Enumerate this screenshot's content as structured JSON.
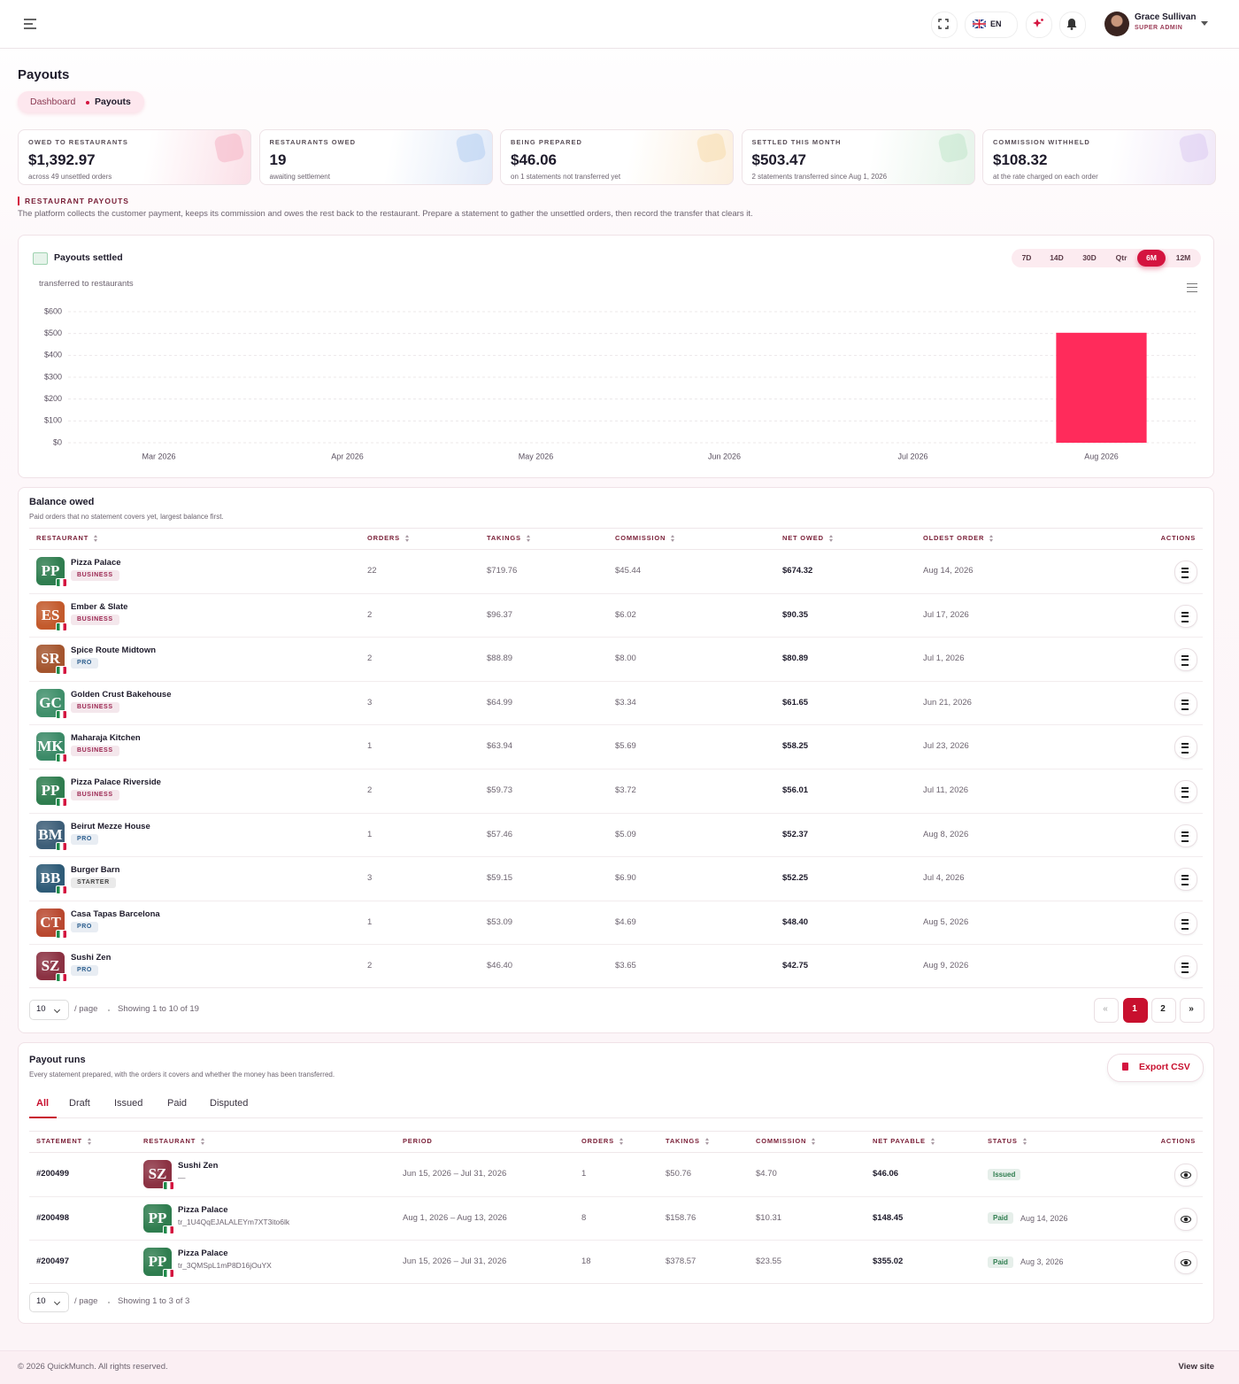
{
  "header": {
    "language": "EN",
    "user_name": "Grace Sullivan",
    "user_role": "SUPER ADMIN"
  },
  "page": {
    "title": "Payouts",
    "breadcrumb": [
      "Dashboard",
      "Payouts"
    ]
  },
  "stats": [
    {
      "label": "OWED TO RESTAURANTS",
      "value": "$1,392.97",
      "note": "across 49 unsettled orders",
      "color": "#f4a9bd"
    },
    {
      "label": "RESTAURANTS OWED",
      "value": "19",
      "note": "awaiting settlement",
      "color": "#a9c8f0"
    },
    {
      "label": "BEING PREPARED",
      "value": "$46.06",
      "note": "on 1 statements not transferred yet",
      "color": "#f6d6a0"
    },
    {
      "label": "SETTLED THIS MONTH",
      "value": "$503.47",
      "note": "2 statements transferred since Aug 1, 2026",
      "color": "#b7e3c4"
    },
    {
      "label": "COMMISSION WITHHELD",
      "value": "$108.32",
      "note": "at the rate charged on each order",
      "color": "#d6c3ef"
    }
  ],
  "section": {
    "label": "RESTAURANT PAYOUTS",
    "description": "The platform collects the customer payment, keeps its commission and owes the rest back to the restaurant. Prepare a statement to gather the unsettled orders, then record the transfer that clears it."
  },
  "chart_data": {
    "type": "bar",
    "title": "Payouts settled",
    "subtitle": "transferred to restaurants",
    "ranges": [
      "7D",
      "14D",
      "30D",
      "Qtr",
      "6M",
      "12M"
    ],
    "active_range": 4,
    "categories": [
      "Mar 2026",
      "Apr 2026",
      "May 2026",
      "Jun 2026",
      "Jul 2026",
      "Aug 2026"
    ],
    "values": [
      0,
      0,
      0,
      0,
      0,
      503.47
    ],
    "color": "#ff2b5b",
    "ylim": [
      0,
      600
    ],
    "yticks": [
      {
        "value": 0,
        "label": "$0"
      },
      {
        "value": 100,
        "label": "$100"
      },
      {
        "value": 200,
        "label": "$200"
      },
      {
        "value": 300,
        "label": "$300"
      },
      {
        "value": 400,
        "label": "$400"
      },
      {
        "value": 500,
        "label": "$500"
      },
      {
        "value": 600,
        "label": "$600"
      }
    ],
    "grid": true
  },
  "balance": {
    "title": "Balance owed",
    "subtitle": "Paid orders that no statement covers yet, largest balance first.",
    "columns": [
      {
        "label": "RESTAURANT",
        "sortable": true
      },
      {
        "label": "ORDERS",
        "sortable": true
      },
      {
        "label": "TAKINGS",
        "sortable": true
      },
      {
        "label": "COMMISSION",
        "sortable": true
      },
      {
        "label": "NET OWED",
        "sortable": true
      },
      {
        "label": "OLDEST ORDER",
        "sortable": true
      },
      {
        "label": "ACTIONS",
        "sortable": false
      }
    ],
    "rows": [
      {
        "initials": "PP",
        "color": "#2f7d4f",
        "name": "Pizza Palace",
        "plan": "BUSINESS",
        "plan_color": "#9b2550",
        "orders": "22",
        "takings": "$719.76",
        "commission": "$45.44",
        "net_owed": "$674.32",
        "oldest_order": "Aug 14, 2026"
      },
      {
        "initials": "ES",
        "color": "#c35a2c",
        "name": "Ember & Slate",
        "plan": "BUSINESS",
        "plan_color": "#9b2550",
        "orders": "2",
        "takings": "$96.37",
        "commission": "$6.02",
        "net_owed": "$90.35",
        "oldest_order": "Jul 17, 2026"
      },
      {
        "initials": "SR",
        "color": "#a4552e",
        "name": "Spice Route Midtown",
        "plan": "PRO",
        "plan_color": "#2b5e8e",
        "orders": "2",
        "takings": "$88.89",
        "commission": "$8.00",
        "net_owed": "$80.89",
        "oldest_order": "Jul 1, 2026"
      },
      {
        "initials": "GC",
        "color": "#3f8f6a",
        "name": "Golden Crust Bakehouse",
        "plan": "BUSINESS",
        "plan_color": "#9b2550",
        "orders": "3",
        "takings": "$64.99",
        "commission": "$3.34",
        "net_owed": "$61.65",
        "oldest_order": "Jun 21, 2026"
      },
      {
        "initials": "MK",
        "color": "#3b8a67",
        "name": "Maharaja Kitchen",
        "plan": "BUSINESS",
        "plan_color": "#9b2550",
        "orders": "1",
        "takings": "$63.94",
        "commission": "$5.69",
        "net_owed": "$58.25",
        "oldest_order": "Jul 23, 2026"
      },
      {
        "initials": "PP",
        "color": "#2f7d4f",
        "name": "Pizza Palace Riverside",
        "plan": "BUSINESS",
        "plan_color": "#9b2550",
        "orders": "2",
        "takings": "$59.73",
        "commission": "$3.72",
        "net_owed": "$56.01",
        "oldest_order": "Jul 11, 2026"
      },
      {
        "initials": "BM",
        "color": "#3d5e78",
        "name": "Beirut Mezze House",
        "plan": "PRO",
        "plan_color": "#2b5e8e",
        "orders": "1",
        "takings": "$57.46",
        "commission": "$5.09",
        "net_owed": "$52.37",
        "oldest_order": "Aug 8, 2026"
      },
      {
        "initials": "BB",
        "color": "#2e5b77",
        "name": "Burger Barn",
        "plan": "STARTER",
        "plan_color": "#444444",
        "orders": "3",
        "takings": "$59.15",
        "commission": "$6.90",
        "net_owed": "$52.25",
        "oldest_order": "Jul 4, 2026"
      },
      {
        "initials": "CT",
        "color": "#b9482f",
        "name": "Casa Tapas Barcelona",
        "plan": "PRO",
        "plan_color": "#2b5e8e",
        "orders": "1",
        "takings": "$53.09",
        "commission": "$4.69",
        "net_owed": "$48.40",
        "oldest_order": "Aug 5, 2026"
      },
      {
        "initials": "SZ",
        "color": "#8b3142",
        "name": "Sushi Zen",
        "plan": "PRO",
        "plan_color": "#2b5e8e",
        "orders": "2",
        "takings": "$46.40",
        "commission": "$3.65",
        "net_owed": "$42.75",
        "oldest_order": "Aug 9, 2026"
      }
    ],
    "pagination": {
      "page_size": "10",
      "per_page": "/ page",
      "showing": "Showing 1 to 10 of 19",
      "prev": "«",
      "pages": [
        "1",
        "2"
      ],
      "next": "»"
    }
  },
  "runs": {
    "title": "Payout runs",
    "subtitle": "Every statement prepared, with the orders it covers and whether the money has been transferred.",
    "export": "Export CSV",
    "tabs": [
      "All",
      "Draft",
      "Issued",
      "Paid",
      "Disputed"
    ],
    "columns": [
      {
        "label": "STATEMENT",
        "sortable": true
      },
      {
        "label": "RESTAURANT",
        "sortable": true
      },
      {
        "label": "PERIOD",
        "sortable": false
      },
      {
        "label": "ORDERS",
        "sortable": true
      },
      {
        "label": "TAKINGS",
        "sortable": true
      },
      {
        "label": "COMMISSION",
        "sortable": true
      },
      {
        "label": "NET PAYABLE",
        "sortable": true
      },
      {
        "label": "STATUS",
        "sortable": true
      },
      {
        "label": "ACTIONS",
        "sortable": false
      }
    ],
    "rows": [
      {
        "statement": "#200499",
        "initials": "SZ",
        "color": "#8b3142",
        "restaurant": "Sushi Zen",
        "reference": "—",
        "period": "Jun 15, 2026 – Jul 31, 2026",
        "orders": "1",
        "takings": "$50.76",
        "commission": "$4.70",
        "net_payable": "$46.06",
        "status": "Issued",
        "status_color": "#2f7d4f"
      },
      {
        "statement": "#200498",
        "initials": "PP",
        "color": "#2f7d4f",
        "restaurant": "Pizza Palace",
        "reference": "tr_1U4QqEJALALEYm7XT3ito6lk",
        "period": "Aug 1, 2026 – Aug 13, 2026",
        "orders": "8",
        "takings": "$158.76",
        "commission": "$10.31",
        "net_payable": "$148.45",
        "status": "Paid",
        "status_color": "#2f7d4f",
        "status_date": "Aug 14, 2026"
      },
      {
        "statement": "#200497",
        "initials": "PP",
        "color": "#2f7d4f",
        "restaurant": "Pizza Palace",
        "reference": "tr_3QMSpL1mP8D16jOuYX",
        "period": "Jun 15, 2026 – Jul 31, 2026",
        "orders": "18",
        "takings": "$378.57",
        "commission": "$23.55",
        "net_payable": "$355.02",
        "status": "Paid",
        "status_color": "#2f7d4f",
        "status_date": "Aug 3, 2026"
      }
    ],
    "pagination": {
      "page_size": "10",
      "per_page": "/ page",
      "showing": "Showing 1 to 3 of 3"
    }
  },
  "footer": {
    "copyright": "© 2026 QuickMunch. All rights reserved.",
    "link": "View site"
  }
}
